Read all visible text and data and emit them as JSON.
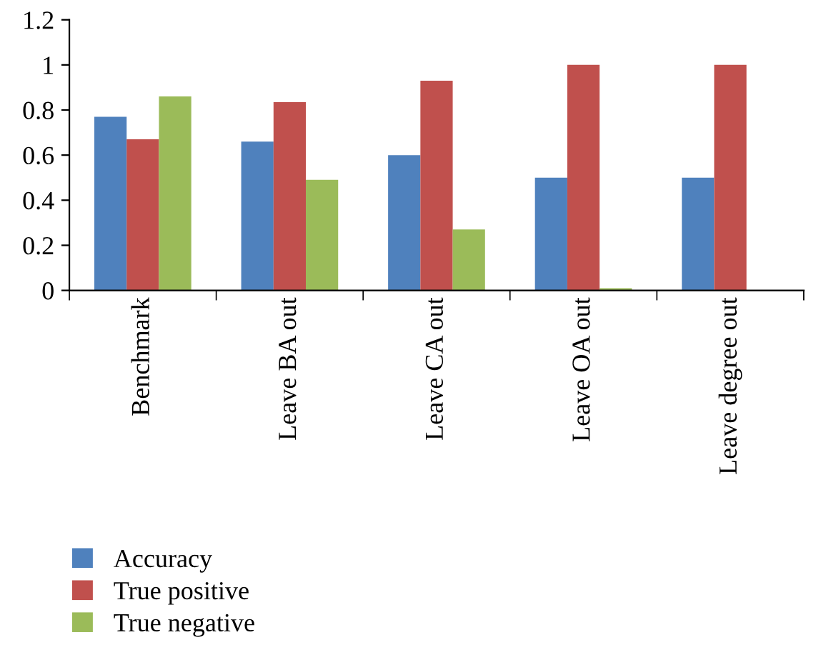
{
  "chart_data": {
    "type": "bar",
    "categories": [
      "Benchmark",
      "Leave BA out",
      "Leave CA out",
      "Leave OA out",
      "Leave degree out"
    ],
    "series": [
      {
        "name": "Accuracy",
        "color": "#4f81bd",
        "values": [
          0.77,
          0.66,
          0.6,
          0.5,
          0.5
        ]
      },
      {
        "name": "True positive",
        "color": "#c0504d",
        "values": [
          0.67,
          0.835,
          0.93,
          1.0,
          1.0
        ]
      },
      {
        "name": "True negative",
        "color": "#9bbb59",
        "values": [
          0.86,
          0.49,
          0.27,
          0.01,
          0
        ]
      }
    ],
    "ylim": [
      0,
      1.2
    ],
    "yticks": [
      0,
      0.2,
      0.4,
      0.6,
      0.8,
      1,
      1.2
    ],
    "grid": false,
    "legend": "bottom"
  }
}
